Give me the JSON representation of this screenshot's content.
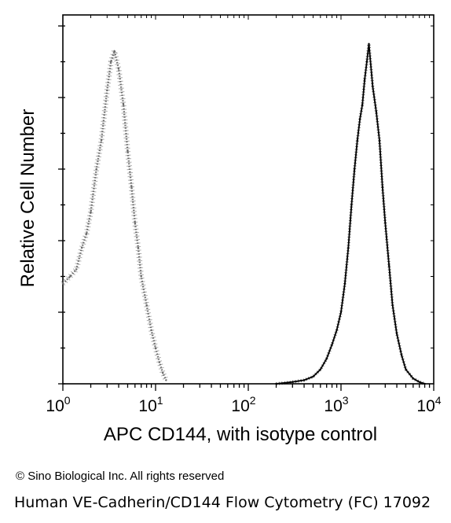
{
  "copyright": "© Sino Biological Inc. All rights reserved",
  "caption": "Human VE-Cadherin/CD144 Flow Cytometry (FC) 17092",
  "colors": {
    "axis": "#000000",
    "isotype_series": "#6a6a6a",
    "antibody_series": "#000000"
  },
  "chart_data": {
    "type": "line",
    "title": "",
    "xlabel": "APC CD144, with isotype control",
    "ylabel": "Relative Cell Number",
    "xscale": "log",
    "xlim": [
      1,
      10000
    ],
    "ylim": [
      0,
      100
    ],
    "xticks": [
      {
        "base": "10",
        "exp": "0",
        "value": 1
      },
      {
        "base": "10",
        "exp": "1",
        "value": 10
      },
      {
        "base": "10",
        "exp": "2",
        "value": 100
      },
      {
        "base": "10",
        "exp": "3",
        "value": 1000
      },
      {
        "base": "10",
        "exp": "4",
        "value": 10000
      }
    ],
    "grid": false,
    "series": [
      {
        "style": "dotted",
        "x": [
          1.0,
          1.2,
          1.4,
          1.6,
          1.8,
          2.0,
          2.3,
          2.6,
          3.0,
          3.3,
          3.6,
          4.0,
          4.5,
          5.0,
          5.5,
          6.0,
          6.5,
          7.0,
          8.0,
          9.0,
          10.0,
          11.0,
          12.0,
          13.0
        ],
        "y": [
          28,
          30,
          32,
          38,
          42,
          48,
          60,
          68,
          82,
          90,
          93,
          88,
          78,
          65,
          55,
          45,
          38,
          30,
          22,
          15,
          10,
          6,
          3,
          1
        ]
      },
      {
        "style": "solid",
        "x": [
          200,
          300,
          400,
          500,
          600,
          700,
          800,
          900,
          1000,
          1100,
          1200,
          1300,
          1400,
          1500,
          1600,
          1700,
          1800,
          1900,
          2000,
          2200,
          2400,
          2600,
          2800,
          3000,
          3300,
          3600,
          4000,
          4500,
          5000,
          6000,
          7000,
          8000
        ],
        "y": [
          0,
          0.5,
          1,
          2,
          4,
          7,
          11,
          15,
          20,
          28,
          38,
          50,
          60,
          68,
          74,
          78,
          85,
          90,
          95,
          83,
          76,
          68,
          55,
          45,
          33,
          22,
          14,
          8,
          4,
          1.5,
          0.5,
          0
        ]
      }
    ]
  }
}
